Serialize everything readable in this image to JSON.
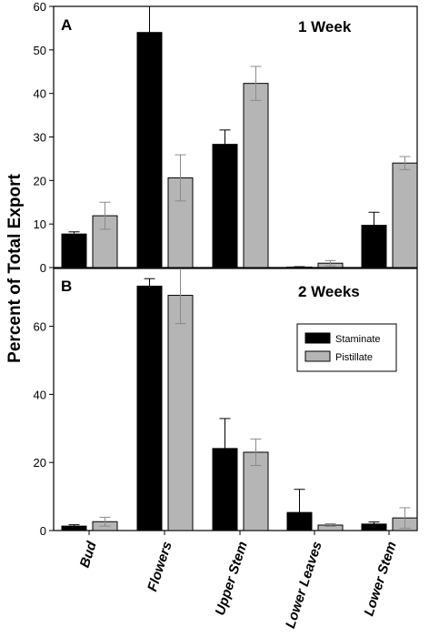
{
  "chart_data": {
    "type": "bar",
    "ylabel": "Percent of Total Export",
    "categories": [
      "Bud",
      "Flowers",
      "Upper Stem",
      "Lower Leaves",
      "Lower Stem"
    ],
    "legend": {
      "placement": "top-right of panel B",
      "entries": [
        "Staminate",
        "Pistillate"
      ]
    },
    "colors": {
      "Staminate": "#000000",
      "Pistillate": "#b5b5b5",
      "errorbar_pistillate": "#8a8a8a"
    },
    "grid": false,
    "panels": [
      {
        "letter": "A",
        "title": "1 Week",
        "ylim": [
          0,
          60
        ],
        "yticks": [
          0,
          10,
          20,
          30,
          40,
          50,
          60
        ],
        "series": [
          {
            "name": "Staminate",
            "values": [
              7.7,
              54.0,
              28.3,
              0.1,
              9.7
            ],
            "errors": [
              0.5,
              6.0,
              3.3,
              0.1,
              3.0
            ]
          },
          {
            "name": "Pistillate",
            "values": [
              11.9,
              20.6,
              42.3,
              1.0,
              24.0
            ],
            "errors": [
              3.1,
              5.3,
              3.9,
              0.6,
              1.5
            ]
          }
        ]
      },
      {
        "letter": "B",
        "title": "2 Weeks",
        "ylim": [
          0,
          77
        ],
        "yticks": [
          0,
          20,
          40,
          60
        ],
        "series": [
          {
            "name": "Staminate",
            "values": [
              1.3,
              71.8,
              24.1,
              5.3,
              1.9
            ],
            "errors": [
              0.4,
              2.2,
              8.8,
              6.8,
              0.6
            ]
          },
          {
            "name": "Pistillate",
            "values": [
              2.6,
              69.1,
              23.0,
              1.6,
              3.7
            ],
            "errors": [
              1.3,
              8.3,
              3.9,
              0.4,
              3.0
            ]
          }
        ]
      }
    ]
  }
}
